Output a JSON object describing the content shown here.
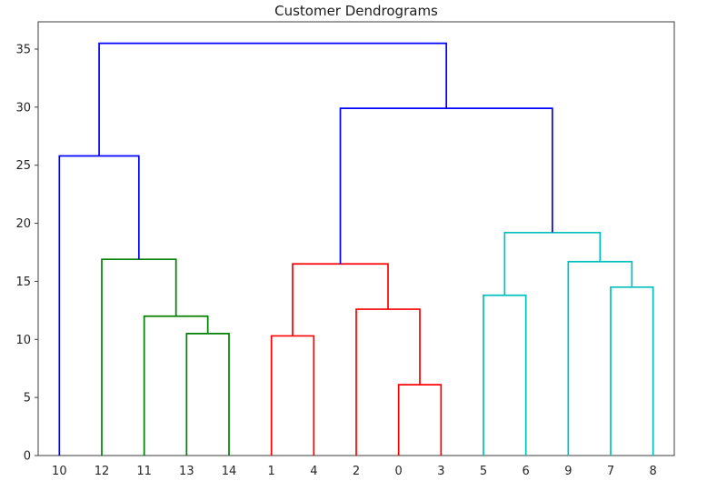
{
  "figure": {
    "background": "#ffffff",
    "axes_color": "#3c3c3c",
    "text_color": "#262626"
  },
  "chart_data": {
    "type": "dendrogram",
    "title": "Customer Dendrograms",
    "leaf_labels": [
      "10",
      "12",
      "11",
      "13",
      "14",
      "1",
      "4",
      "2",
      "0",
      "3",
      "5",
      "6",
      "9",
      "7",
      "8"
    ],
    "yticks": [
      0,
      5,
      10,
      15,
      20,
      25,
      30,
      35
    ],
    "ylim": [
      0,
      37.35
    ],
    "xlim": [
      0,
      150
    ],
    "leaf_offset": 5,
    "leaf_spacing": 10,
    "legend": "none",
    "grid": false,
    "colors": {
      "b": "#0000ff",
      "g": "#008000",
      "r": "#ff0000",
      "c": "#00bfbf"
    },
    "links": [
      {
        "a": "leaf:3",
        "b": "leaf:4",
        "height": 10.5,
        "color": "g"
      },
      {
        "a": "leaf:2",
        "b": "link:0",
        "height": 12.0,
        "color": "g"
      },
      {
        "a": "leaf:1",
        "b": "link:1",
        "height": 16.9,
        "color": "g"
      },
      {
        "a": "leaf:8",
        "b": "leaf:9",
        "height": 6.1,
        "color": "r"
      },
      {
        "a": "leaf:5",
        "b": "leaf:6",
        "height": 10.3,
        "color": "r"
      },
      {
        "a": "leaf:7",
        "b": "link:3",
        "height": 12.6,
        "color": "r"
      },
      {
        "a": "link:4",
        "b": "link:5",
        "height": 16.5,
        "color": "r"
      },
      {
        "a": "leaf:10",
        "b": "leaf:11",
        "height": 13.8,
        "color": "c"
      },
      {
        "a": "leaf:13",
        "b": "leaf:14",
        "height": 14.5,
        "color": "c"
      },
      {
        "a": "leaf:12",
        "b": "link:8",
        "height": 16.7,
        "color": "c"
      },
      {
        "a": "link:7",
        "b": "link:9",
        "height": 19.2,
        "color": "c"
      },
      {
        "a": "leaf:0",
        "b": "link:2",
        "height": 25.8,
        "color": "b"
      },
      {
        "a": "link:6",
        "b": "link:10",
        "height": 29.9,
        "color": "b"
      },
      {
        "a": "link:11",
        "b": "link:12",
        "height": 35.5,
        "color": "b"
      }
    ]
  }
}
